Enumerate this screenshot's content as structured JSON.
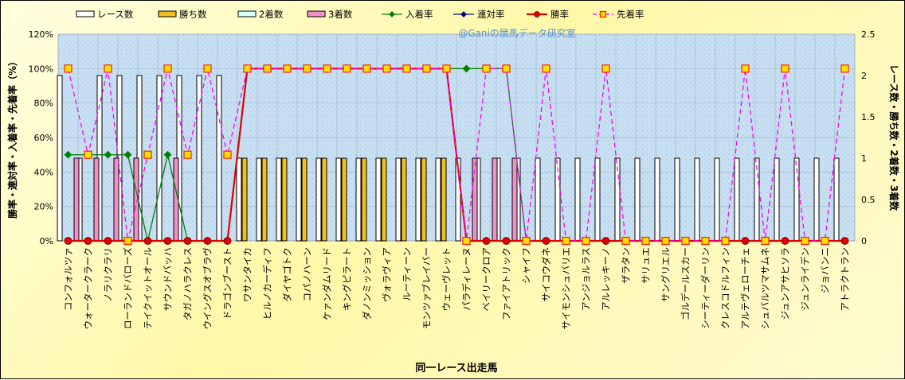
{
  "chart_data": {
    "type": "bar",
    "watermark": "@Ganiの競馬データ研究室",
    "xlabel": "同一レース出走馬",
    "ylabel_left": "勝率・連対率・入着率・先着率（%）",
    "ylabel_right": "レース数・勝ち数・2着数・3着数",
    "y_left": {
      "ticks": [
        "0%",
        "20%",
        "40%",
        "60%",
        "80%",
        "100%",
        "120%"
      ],
      "lim": [
        0,
        120
      ]
    },
    "y_right": {
      "ticks": [
        "0",
        "0.5",
        "1",
        "1.5",
        "2",
        "2.5"
      ],
      "lim": [
        0,
        2.5
      ]
    },
    "grid": true,
    "legend_position": "top",
    "categories": [
      "コンフォルツァ",
      "ウォータークラーク",
      "ノラリクラリ",
      "ローランドバローズ",
      "テイクイットオール",
      "サウンドバッハ",
      "タガノハラクレス",
      "ウイングスオブラヴ",
      "ドラゴンブースト",
      "ワサンタイカ",
      "ヒルノカーディフ",
      "ダイヤゴトク",
      "コパノハーン",
      "ケァンダムリード",
      "キングピラート",
      "ダノンミッション",
      "ヴォラヴィア",
      "ルーティーン",
      "モンツァブレイバー",
      "ウェーヴレット",
      "パラディレーヌ",
      "ベイリークロア",
      "ファイアトリック",
      "シャイフ",
      "サイコウダネ",
      "サイモンシュバリエ",
      "アンジョルラス",
      "アルレッキーノ",
      "ザラタン",
      "サリュエ",
      "サングリエル",
      "ゴルデールスカー",
      "シーティーダーリン",
      "クレスコドルフィン",
      "アルテヴェローチェ",
      "シュバルツマサムネ",
      "ジュンアサヒソラ",
      "ジュンライデン",
      "ジョバンニ",
      "アトラクトラン"
    ],
    "series": [
      {
        "name": "レース数",
        "axis": "right",
        "color": "#ffffff",
        "values": [
          2,
          1,
          2,
          2,
          2,
          2,
          2,
          2,
          2,
          1,
          1,
          1,
          1,
          1,
          1,
          1,
          1,
          1,
          1,
          1,
          1,
          1,
          1,
          1,
          1,
          1,
          1,
          1,
          1,
          1,
          1,
          1,
          1,
          1,
          1,
          1,
          1,
          1,
          1,
          1
        ]
      },
      {
        "name": "勝ち数",
        "axis": "right",
        "color": "#f0c020",
        "values": [
          0,
          0,
          0,
          0,
          0,
          0,
          0,
          0,
          0,
          1,
          1,
          1,
          1,
          1,
          1,
          1,
          1,
          1,
          1,
          1,
          0,
          0,
          0,
          0,
          0,
          0,
          0,
          0,
          0,
          0,
          0,
          0,
          0,
          0,
          0,
          0,
          0,
          0,
          0,
          0
        ]
      },
      {
        "name": "2着数",
        "axis": "right",
        "color": "#d8fff8",
        "values": [
          0,
          0,
          0,
          0,
          0,
          0,
          0,
          0,
          0,
          0,
          0,
          0,
          0,
          0,
          0,
          0,
          0,
          0,
          0,
          0,
          0,
          0,
          0,
          0,
          0,
          0,
          0,
          0,
          0,
          0,
          0,
          0,
          0,
          0,
          0,
          0,
          0,
          0,
          0,
          0
        ]
      },
      {
        "name": "3着数",
        "axis": "right",
        "color": "#f090c8",
        "values": [
          1,
          1,
          1,
          1,
          0,
          1,
          0,
          0,
          0,
          0,
          0,
          0,
          0,
          0,
          0,
          0,
          0,
          0,
          0,
          0,
          1,
          1,
          1,
          0,
          0,
          0,
          0,
          0,
          0,
          0,
          0,
          0,
          0,
          0,
          0,
          0,
          0,
          0,
          0,
          0
        ]
      },
      {
        "name": "入着率",
        "axis": "left",
        "color": "#008000",
        "marker": "diamond",
        "values": [
          50,
          50,
          50,
          50,
          0,
          50,
          0,
          0,
          0,
          100,
          100,
          100,
          100,
          100,
          100,
          100,
          100,
          100,
          100,
          100,
          100,
          100,
          100,
          0,
          0,
          0,
          0,
          0,
          0,
          0,
          0,
          0,
          0,
          0,
          0,
          0,
          0,
          0,
          0,
          0
        ]
      },
      {
        "name": "連対率",
        "axis": "left",
        "color": "#000080",
        "marker": "diamond",
        "values": [
          0,
          0,
          0,
          0,
          0,
          0,
          0,
          0,
          0,
          100,
          100,
          100,
          100,
          100,
          100,
          100,
          100,
          100,
          100,
          100,
          0,
          0,
          0,
          0,
          0,
          0,
          0,
          0,
          0,
          0,
          0,
          0,
          0,
          0,
          0,
          0,
          0,
          0,
          0,
          0
        ]
      },
      {
        "name": "勝率",
        "axis": "left",
        "color": "#e00000",
        "marker": "circle",
        "values": [
          0,
          0,
          0,
          0,
          0,
          0,
          0,
          0,
          0,
          100,
          100,
          100,
          100,
          100,
          100,
          100,
          100,
          100,
          100,
          100,
          0,
          0,
          0,
          0,
          0,
          0,
          0,
          0,
          0,
          0,
          0,
          0,
          0,
          0,
          0,
          0,
          0,
          0,
          0,
          0
        ]
      },
      {
        "name": "先着率",
        "axis": "left",
        "color": "#ff00ff",
        "marker": "square",
        "dashed": true,
        "values": [
          100,
          50,
          100,
          0,
          50,
          100,
          50,
          100,
          50,
          100,
          100,
          100,
          100,
          100,
          100,
          100,
          100,
          100,
          100,
          100,
          0,
          100,
          100,
          0,
          100,
          0,
          0,
          100,
          0,
          0,
          0,
          0,
          0,
          0,
          100,
          0,
          100,
          0,
          0,
          100
        ]
      }
    ]
  }
}
